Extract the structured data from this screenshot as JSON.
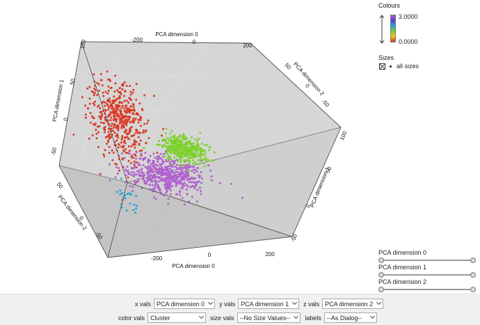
{
  "chart_data": {
    "type": "scatter3d",
    "title": "",
    "axes": {
      "x": {
        "label": "PCA dimension 0",
        "range": [
          -300,
          300
        ],
        "ticks": [
          -200,
          0,
          200
        ]
      },
      "y": {
        "label": "PCA dimension 1",
        "range": [
          -80,
          100
        ],
        "ticks": [
          -50,
          0,
          50,
          100
        ]
      },
      "z": {
        "label": "PCA dimension 2",
        "range": [
          -80,
          100
        ],
        "ticks": [
          -50,
          0,
          50,
          100
        ]
      }
    },
    "color_scale": {
      "label": "Colours",
      "min": "0.0000",
      "max": "3.0000",
      "colors": [
        "#d93a26",
        "#b060d0",
        "#1fa8d8",
        "#7ed12e"
      ]
    },
    "sizes": {
      "label": "Sizes",
      "entry": "all sizes"
    },
    "clusters": [
      {
        "cluster": 0,
        "color": "#d93a26",
        "n": 480,
        "center": [
          -110,
          45,
          10
        ],
        "spread": [
          55,
          25,
          18
        ]
      },
      {
        "cluster": 1,
        "color": "#b060d0",
        "n": 560,
        "center": [
          60,
          -25,
          -5
        ],
        "spread": [
          70,
          10,
          15
        ]
      },
      {
        "cluster": 2,
        "color": "#1fa8d8",
        "n": 22,
        "center": [
          -150,
          -45,
          -20
        ],
        "spread": [
          25,
          10,
          10
        ]
      },
      {
        "cluster": 3,
        "color": "#7ed12e",
        "n": 420,
        "center": [
          140,
          10,
          -5
        ],
        "spread": [
          35,
          8,
          10
        ]
      }
    ]
  },
  "legend": {
    "colours_title": "Colours",
    "max_label": "3.0000",
    "min_label": "0.0000",
    "sizes_title": "Sizes",
    "sizes_entry": "all sizes"
  },
  "sliders": [
    {
      "label": "PCA dimension 0"
    },
    {
      "label": "PCA dimension 1"
    },
    {
      "label": "PCA dimension 2"
    }
  ],
  "controls": {
    "x_label": "x vals",
    "x_value": "PCA dimension 0",
    "y_label": "y vals",
    "y_value": "PCA dimension 1",
    "z_label": "z vals",
    "z_value": "PCA dimension 2",
    "color_label": "color vals",
    "color_value": "Cluster",
    "size_label": "size vals",
    "size_value": "--No Size Values--",
    "labels_label": "labels",
    "labels_value": "--As Dialog--"
  }
}
